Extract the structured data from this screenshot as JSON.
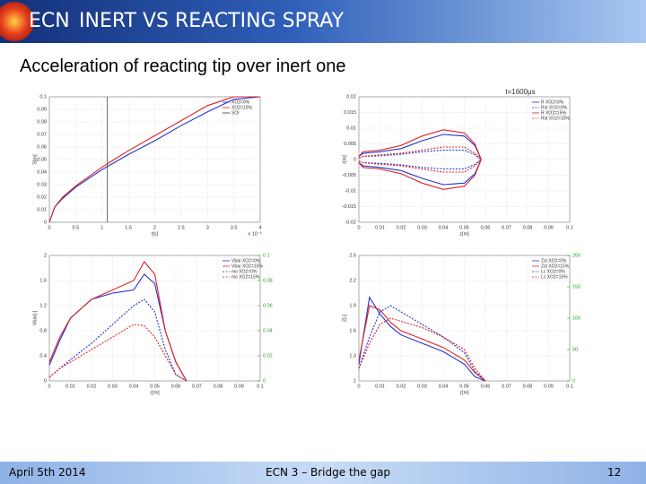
{
  "header": {
    "logo_text": "ECN",
    "title": "INERT VS REACTING SPRAY"
  },
  "subtitle": "Acceleration of reacting tip over inert one",
  "footer": {
    "date": "April 5th 2014",
    "event": "ECN 3 – Bridge the gap",
    "page": "12"
  },
  "charts": [
    {
      "type": "line",
      "title": "",
      "xlabel": "t[s]",
      "ylabel": "S[m]",
      "annotation": "x 10⁻³",
      "x": [
        0,
        0.1,
        0.25,
        0.5,
        1,
        1.5,
        2,
        2.5,
        3,
        3.5,
        4
      ],
      "xlim": [
        0,
        4
      ],
      "xticks": [
        0,
        0.5,
        1,
        1.5,
        2,
        2.5,
        3,
        3.5,
        4
      ],
      "ylim": [
        0,
        0.1
      ],
      "yticks": [
        0,
        0.01,
        0.02,
        0.03,
        0.04,
        0.05,
        0.06,
        0.07,
        0.08,
        0.09,
        0.1
      ],
      "series": [
        {
          "name": "XO2=0%",
          "color": "#2233cc",
          "values": [
            0,
            0.012,
            0.019,
            0.028,
            0.042,
            0.054,
            0.065,
            0.077,
            0.088,
            0.098,
            0.1
          ]
        },
        {
          "name": "XO2=15%",
          "color": "#dd2222",
          "values": [
            0,
            0.012,
            0.02,
            0.029,
            0.044,
            0.057,
            0.069,
            0.081,
            0.093,
            0.1,
            0.1
          ]
        },
        {
          "name": "SOI",
          "color": "#333333",
          "x_value": 1.1
        }
      ]
    },
    {
      "type": "envelope",
      "title": "t=1600μs",
      "xlabel": "z[m]",
      "ylabel": "r[m]",
      "x": [
        0,
        0.002,
        0.01,
        0.02,
        0.03,
        0.04,
        0.05,
        0.055,
        0.058
      ],
      "xlim": [
        0,
        0.1
      ],
      "xticks": [
        0,
        0.01,
        0.02,
        0.03,
        0.04,
        0.05,
        0.06,
        0.07,
        0.08,
        0.09,
        0.1
      ],
      "ylim": [
        -0.02,
        0.02
      ],
      "yticks": [
        -0.02,
        -0.015,
        -0.01,
        -0.005,
        0,
        0.005,
        0.01,
        0.015,
        0.02
      ],
      "series": [
        {
          "name": "R XO2=0%",
          "color": "#2233cc",
          "dash": false,
          "values": [
            0.001,
            0.002,
            0.0025,
            0.0035,
            0.006,
            0.008,
            0.0075,
            0.0045,
            0
          ],
          "values_lower": [
            -0.001,
            -0.002,
            -0.0025,
            -0.0035,
            -0.006,
            -0.008,
            -0.0075,
            -0.0045,
            0
          ]
        },
        {
          "name": "Rst XO2=0%",
          "color": "#2233cc",
          "dash": true,
          "values": [
            0.0005,
            0.001,
            0.0012,
            0.0017,
            0.0025,
            0.003,
            0.003,
            0.0015,
            0
          ],
          "values_lower": [
            -0.0005,
            -0.001,
            -0.0012,
            -0.0017,
            -0.0025,
            -0.003,
            -0.003,
            -0.0015,
            0
          ]
        },
        {
          "name": "R XO2=15%",
          "color": "#dd2222",
          "dash": false,
          "values": [
            0.001,
            0.0025,
            0.003,
            0.0045,
            0.0075,
            0.0095,
            0.0085,
            0.005,
            0
          ],
          "values_lower": [
            -0.001,
            -0.0025,
            -0.003,
            -0.0045,
            -0.0075,
            -0.0095,
            -0.0085,
            -0.005,
            0
          ]
        },
        {
          "name": "Rst XO2=15%",
          "color": "#dd2222",
          "dash": true,
          "values": [
            0.0005,
            0.001,
            0.0015,
            0.002,
            0.003,
            0.004,
            0.004,
            0.002,
            0
          ],
          "values_lower": [
            -0.0005,
            -0.001,
            -0.0015,
            -0.002,
            -0.003,
            -0.004,
            -0.004,
            -0.002,
            0
          ]
        }
      ]
    },
    {
      "type": "line",
      "title": "",
      "xlabel": "z[m]",
      "ylabel": "Vbar[-]",
      "x": [
        0,
        0.005,
        0.01,
        0.02,
        0.03,
        0.04,
        0.045,
        0.05,
        0.055,
        0.06,
        0.065
      ],
      "xlim": [
        0,
        0.1
      ],
      "xticks": [
        0,
        0.01,
        0.02,
        0.03,
        0.04,
        0.05,
        0.06,
        0.07,
        0.08,
        0.09,
        0.1
      ],
      "ylim": [
        0,
        2
      ],
      "yticks": [
        0,
        0.4,
        0.8,
        1.2,
        1.6,
        2
      ],
      "y2lim": [
        0,
        0.1
      ],
      "y2ticks": [
        0,
        0.02,
        0.04,
        0.06,
        0.08,
        0.1
      ],
      "series": [
        {
          "name": "Vbar XO2=0%",
          "color": "#2233cc",
          "values": [
            0.25,
            0.65,
            1.0,
            1.3,
            1.4,
            1.45,
            1.7,
            1.55,
            0.8,
            0.3,
            0
          ]
        },
        {
          "name": "Vbar XO2=15%",
          "color": "#dd2222",
          "values": [
            0.3,
            0.7,
            1.0,
            1.3,
            1.45,
            1.6,
            1.9,
            1.7,
            0.8,
            0.3,
            0
          ]
        },
        {
          "name": "mo XO2=0%",
          "color": "#2233cc",
          "dash": true,
          "axis": "y2",
          "values": [
            0.003,
            0.01,
            0.017,
            0.03,
            0.045,
            0.06,
            0.065,
            0.055,
            0.025,
            0.005,
            0
          ]
        },
        {
          "name": "mo XO2=15%",
          "color": "#dd2222",
          "dash": true,
          "axis": "y2",
          "values": [
            0.003,
            0.01,
            0.015,
            0.025,
            0.035,
            0.045,
            0.044,
            0.035,
            0.02,
            0.005,
            0
          ]
        }
      ]
    },
    {
      "type": "line",
      "title": "",
      "xlabel": "z[m]",
      "ylabel": "Z[-]",
      "x": [
        0,
        0.005,
        0.01,
        0.015,
        0.02,
        0.03,
        0.04,
        0.05,
        0.055,
        0.06
      ],
      "xlim": [
        0,
        0.1
      ],
      "xticks": [
        0,
        0.01,
        0.02,
        0.03,
        0.04,
        0.05,
        0.06,
        0.07,
        0.08,
        0.09,
        0.1
      ],
      "ylim": [
        1,
        2.5
      ],
      "yticks": [
        1,
        1.3,
        1.6,
        1.9,
        2.2,
        2.5
      ],
      "y2lim": [
        0,
        200
      ],
      "y2ticks": [
        0,
        50,
        100,
        150,
        200
      ],
      "series": [
        {
          "name": "Zst XO2=0%",
          "color": "#2233cc",
          "values": [
            1.2,
            2.0,
            1.8,
            1.65,
            1.55,
            1.45,
            1.35,
            1.2,
            1.05,
            1.0
          ]
        },
        {
          "name": "Zst XO2=15%",
          "color": "#dd2222",
          "values": [
            1.25,
            1.9,
            1.85,
            1.7,
            1.6,
            1.5,
            1.4,
            1.25,
            1.1,
            1.0
          ]
        },
        {
          "name": "Lc XO2=0%",
          "color": "#2233cc",
          "dash": true,
          "axis": "y2",
          "values": [
            20,
            70,
            110,
            120,
            110,
            90,
            70,
            45,
            15,
            0
          ]
        },
        {
          "name": "Lc XO2=15%",
          "color": "#dd2222",
          "dash": true,
          "axis": "y2",
          "values": [
            20,
            60,
            90,
            100,
            95,
            85,
            70,
            50,
            20,
            0
          ]
        }
      ]
    }
  ]
}
